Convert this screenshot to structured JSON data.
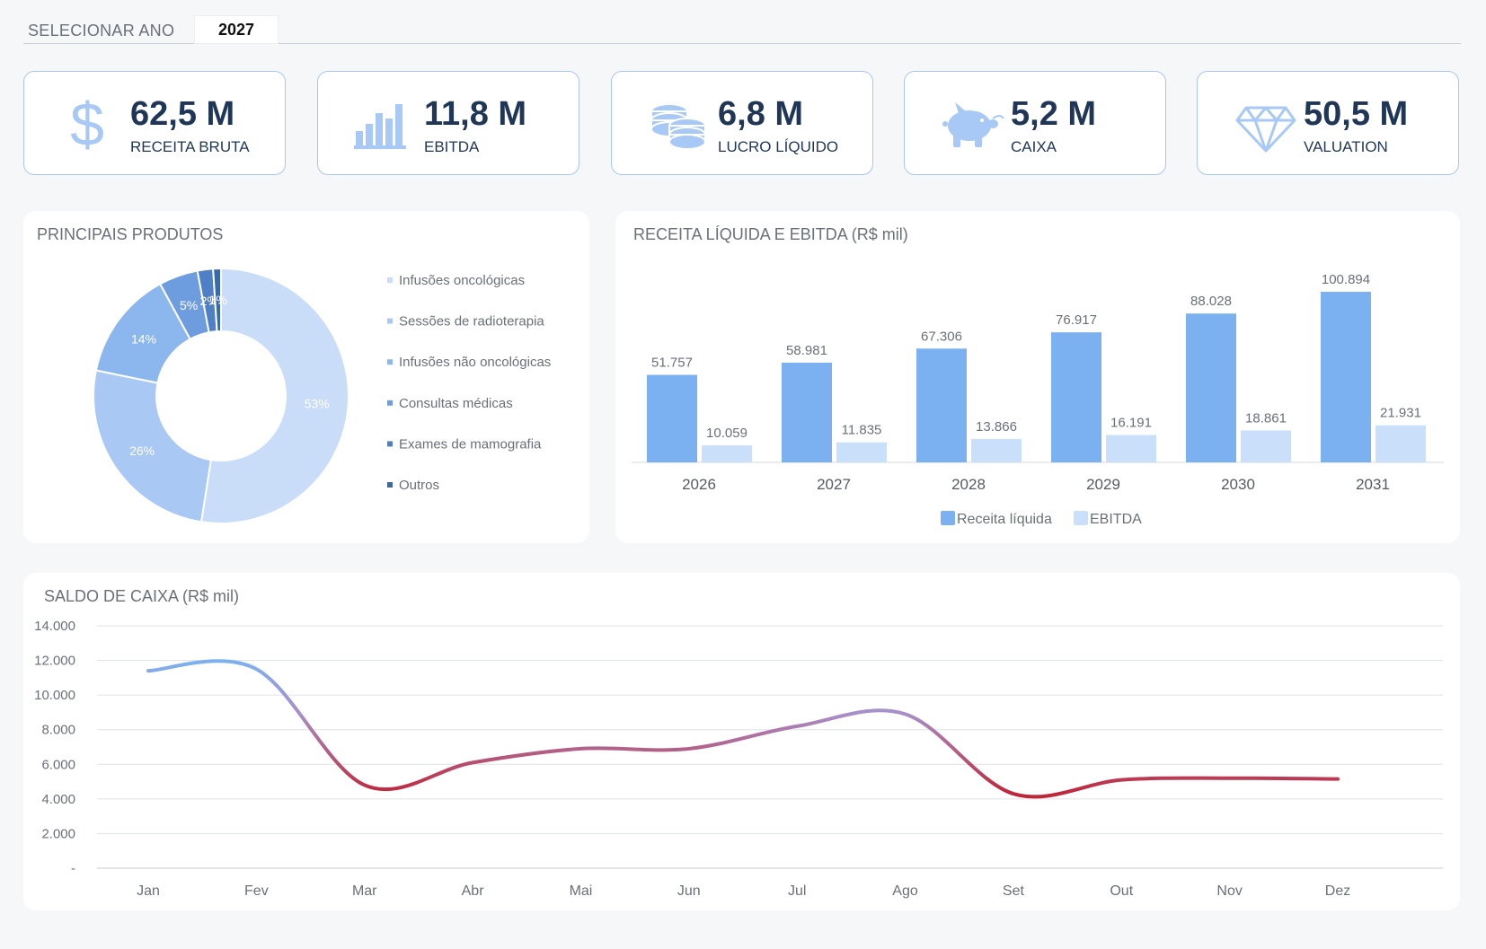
{
  "year_selector": {
    "label": "SELECIONAR ANO",
    "value": "2027"
  },
  "kpis": [
    {
      "value": "62,5 M",
      "label": "RECEITA BRUTA",
      "icon": "dollar-icon"
    },
    {
      "value": "11,8 M",
      "label": "EBITDA",
      "icon": "bar-chart-icon"
    },
    {
      "value": "6,8 M",
      "label": "LUCRO LÍQUIDO",
      "icon": "coins-icon"
    },
    {
      "value": "5,2 M",
      "label": "CAIXA",
      "icon": "piggy-bank-icon"
    },
    {
      "value": "50,5 M",
      "label": "VALUATION",
      "icon": "diamond-icon"
    }
  ],
  "colors": {
    "icon": "#a8c9f5",
    "kpi_text": "#1f3656",
    "kpi_border": "#a9c7ee",
    "bar_receita": "#7cb1f1",
    "bar_ebitda": "#c9dffa"
  },
  "chart_data": [
    {
      "type": "pie",
      "title": "PRINCIPAIS PRODUTOS",
      "categories": [
        "Infusões oncológicas",
        "Sessões de radioterapia",
        "Infusões não oncológicas",
        "Consultas médicas",
        "Exames de mamografia",
        "Outros"
      ],
      "values": [
        53,
        26,
        14,
        5,
        2,
        1
      ],
      "labels": [
        "53%",
        "26%",
        "14%",
        "5%",
        "2%",
        "1%"
      ],
      "colors": [
        "#c9dcf8",
        "#a9c8f3",
        "#8cb6ee",
        "#6e9ddf",
        "#4f7fc5",
        "#3a68ac"
      ],
      "legend": "right"
    },
    {
      "type": "bar",
      "title": "RECEITA LÍQUIDA E EBITDA (R$ mil)",
      "categories": [
        "2026",
        "2027",
        "2028",
        "2029",
        "2030",
        "2031"
      ],
      "series": [
        {
          "name": "Receita líquida",
          "values": [
            51757,
            58981,
            67306,
            76917,
            88028,
            100894
          ],
          "labels": [
            "51.757",
            "58.981",
            "67.306",
            "76.917",
            "88.028",
            "100.894"
          ]
        },
        {
          "name": "EBITDA",
          "values": [
            10059,
            11835,
            13866,
            16191,
            18861,
            21931
          ],
          "labels": [
            "10.059",
            "11.835",
            "13.866",
            "16.191",
            "18.861",
            "21.931"
          ]
        }
      ],
      "legend": "bottom"
    },
    {
      "type": "line",
      "title": "SALDO DE CAIXA (R$ mil)",
      "categories": [
        "Jan",
        "Fev",
        "Mar",
        "Abr",
        "Mai",
        "Jun",
        "Jul",
        "Ago",
        "Set",
        "Out",
        "Nov",
        "Dez"
      ],
      "values": [
        11400,
        11500,
        4800,
        6100,
        6900,
        6900,
        8200,
        8900,
        4300,
        5100,
        5200,
        5150
      ],
      "ylim": [
        0,
        14000
      ],
      "yticks": [
        0,
        2000,
        4000,
        6000,
        8000,
        10000,
        12000,
        14000
      ],
      "ytick_labels": [
        "-",
        "2.000",
        "4.000",
        "6.000",
        "8.000",
        "10.000",
        "12.000",
        "14.000"
      ],
      "gradient": [
        "#7cb1f1",
        "#a88fc8",
        "#c0263a"
      ],
      "grid": true
    }
  ]
}
